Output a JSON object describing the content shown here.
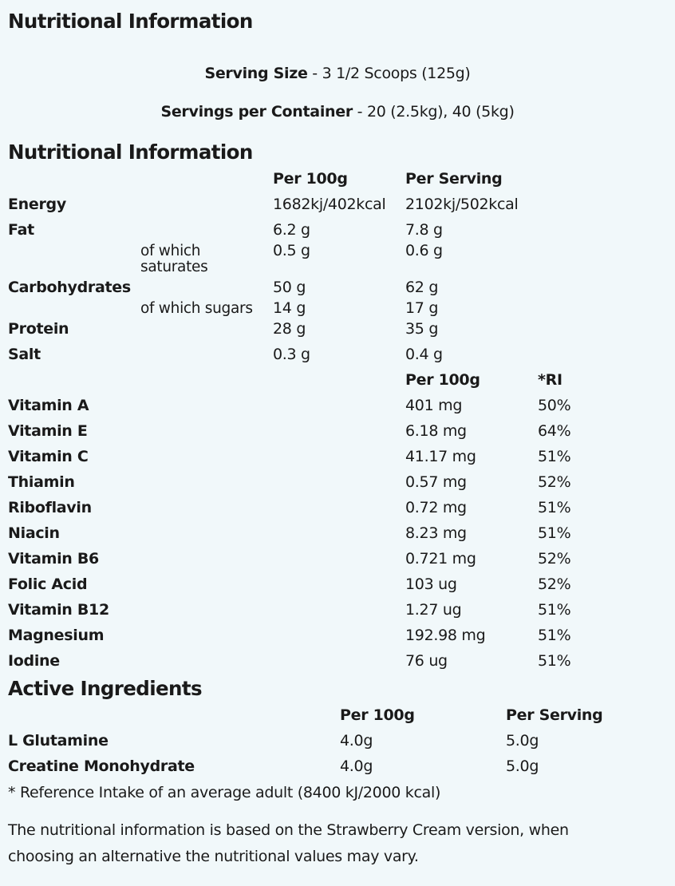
{
  "title": "Nutritional Information",
  "serving": {
    "size_label": "Serving Size",
    "size_value": " - 3 1/2 Scoops (125g)",
    "per_container_label": "Servings per Container",
    "per_container_value": " - 20 (2.5kg), 40 (5kg)"
  },
  "nutrition": {
    "heading": "Nutritional Information",
    "col_per100": "Per 100g",
    "col_serving": "Per Serving",
    "rows": [
      {
        "name": "Energy",
        "sub": "",
        "per100": "1682kj/402kcal",
        "serving": "2102kj/502kcal"
      },
      {
        "name": "Fat",
        "sub": "",
        "per100": "6.2 g",
        "serving": "7.8 g"
      },
      {
        "name": "",
        "sub": "of which saturates",
        "per100": "0.5 g",
        "serving": "0.6 g"
      },
      {
        "name": "Carbohydrates",
        "sub": "",
        "per100": "50 g",
        "serving": "62 g"
      },
      {
        "name": "",
        "sub": "of which sugars",
        "per100": "14 g",
        "serving": "17 g"
      },
      {
        "name": "Protein",
        "sub": "",
        "per100": "28 g",
        "serving": "35 g"
      },
      {
        "name": "Salt",
        "sub": "",
        "per100": "0.3 g",
        "serving": "0.4 g"
      }
    ]
  },
  "vitamins": {
    "col_per100": "Per 100g",
    "col_ri": "*RI",
    "rows": [
      {
        "name": "Vitamin A",
        "per100": "401 mg",
        "ri": "50%"
      },
      {
        "name": "Vitamin E",
        "per100": "6.18 mg",
        "ri": "64%"
      },
      {
        "name": "Vitamin C",
        "per100": "41.17 mg",
        "ri": "51%"
      },
      {
        "name": "Thiamin",
        "per100": "0.57 mg",
        "ri": "52%"
      },
      {
        "name": "Riboflavin",
        "per100": "0.72 mg",
        "ri": "51%"
      },
      {
        "name": "Niacin",
        "per100": "8.23 mg",
        "ri": "51%"
      },
      {
        "name": "Vitamin B6",
        "per100": "0.721 mg",
        "ri": "52%"
      },
      {
        "name": "Folic Acid",
        "per100": "103 ug",
        "ri": "52%"
      },
      {
        "name": "Vitamin B12",
        "per100": "1.27 ug",
        "ri": "51%"
      },
      {
        "name": "Magnesium",
        "per100": "192.98 mg",
        "ri": "51%"
      },
      {
        "name": "Iodine",
        "per100": "76 ug",
        "ri": "51%"
      }
    ]
  },
  "active": {
    "heading": "Active Ingredients",
    "col_per100": "Per 100g",
    "col_serving": "Per Serving",
    "rows": [
      {
        "name": "L Glutamine",
        "per100": "4.0g",
        "serving": "5.0g"
      },
      {
        "name": "Creatine Monohydrate",
        "per100": "4.0g",
        "serving": "5.0g"
      }
    ]
  },
  "footnote": "* Reference Intake of an average adult (8400 kJ/2000 kcal)",
  "disclaimer_line1": "The nutritional information is based on the Strawberry Cream version, when",
  "disclaimer_line2": "choosing an alternative the nutritional values may vary."
}
